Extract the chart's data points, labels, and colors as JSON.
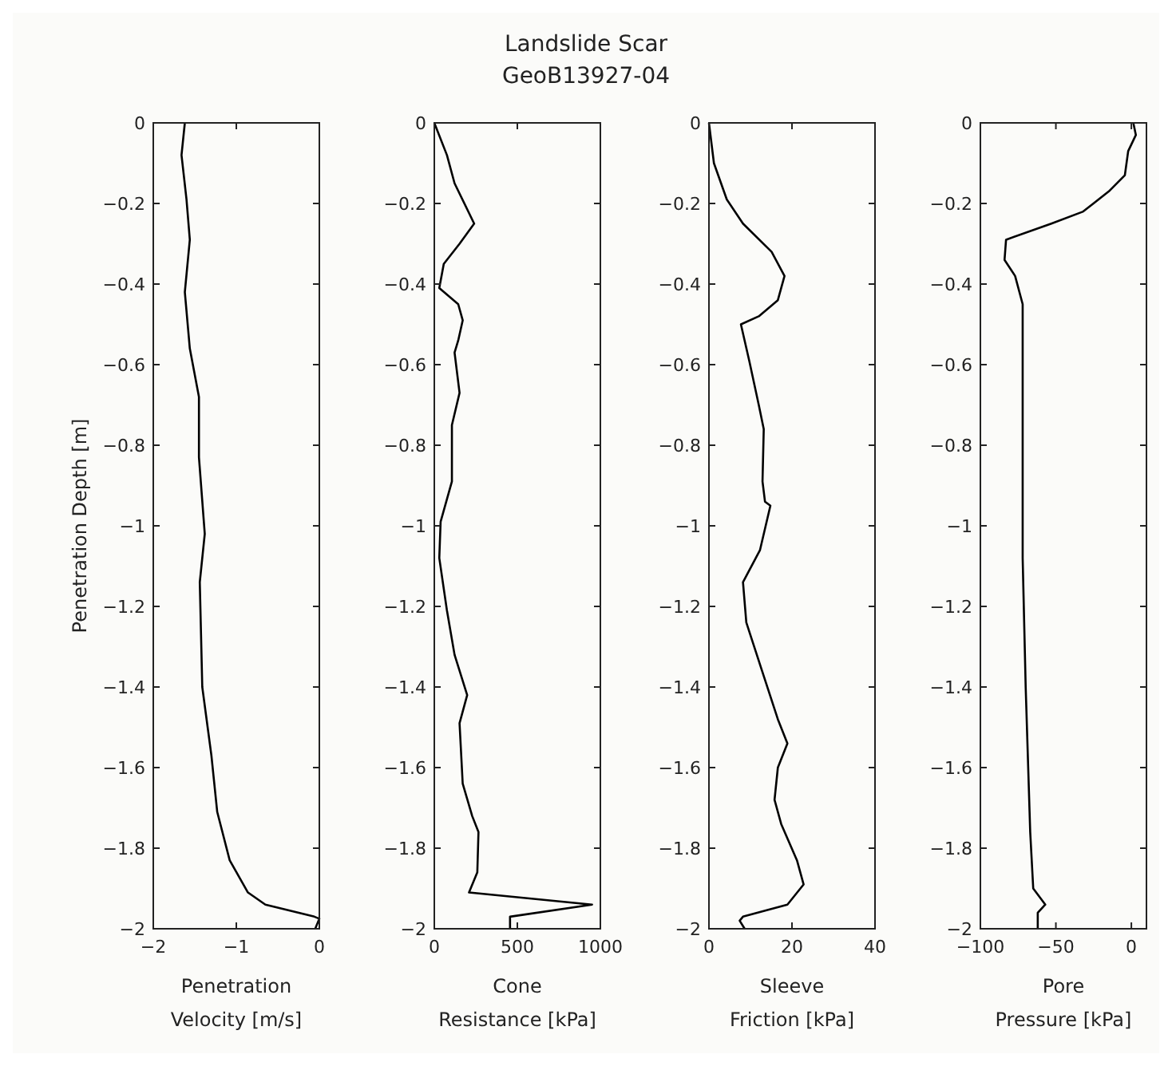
{
  "chart_data": [
    {
      "type": "line",
      "xlabel": "Penetration Velocity [m/s]",
      "ylabel": "Penetration Depth [m]",
      "xlim": [
        -2,
        0
      ],
      "xticks": [
        -2,
        -1,
        0
      ],
      "ylim": [
        -2,
        0
      ],
      "yticks": [
        0,
        -0.2,
        -0.4,
        -0.6,
        -0.8,
        -1,
        -1.2,
        -1.4,
        -1.6,
        -1.8,
        -2
      ],
      "series": [
        {
          "color": "#000000",
          "x": [
            -1.62,
            -1.66,
            -1.6,
            -1.56,
            -1.62,
            -1.56,
            -1.45,
            -1.45,
            -1.38,
            -1.44,
            -1.41,
            -1.3,
            -1.23,
            -1.08,
            -0.86,
            -0.65,
            -0.06,
            0,
            -0.05
          ],
          "values": [
            0,
            -0.08,
            -0.19,
            -0.29,
            -0.42,
            -0.56,
            -0.68,
            -0.83,
            -1.02,
            -1.14,
            -1.4,
            -1.57,
            -1.71,
            -1.83,
            -1.91,
            -1.94,
            -1.97,
            -1.975,
            -2
          ]
        }
      ]
    },
    {
      "type": "line",
      "title": "Landslide Scar",
      "subtitle": "GeoB13927-04",
      "xlabel": "Cone Resistance [kPa]",
      "xlim": [
        0,
        1000
      ],
      "xticks": [
        0,
        500,
        1000
      ],
      "ylim": [
        -2,
        0
      ],
      "yticks": [
        0,
        -0.2,
        -0.4,
        -0.6,
        -0.8,
        -1,
        -1.2,
        -1.4,
        -1.6,
        -1.8,
        -2
      ],
      "series": [
        {
          "color": "#000000",
          "x": [
            0,
            76,
            122,
            240,
            152,
            57,
            30,
            144,
            171,
            144,
            122,
            152,
            106,
            106,
            38,
            30,
            76,
            122,
            198,
            152,
            171,
            228,
            266,
            259,
            209,
            950,
            456,
            456
          ],
          "values": [
            0,
            -0.08,
            -0.15,
            -0.25,
            -0.3,
            -0.35,
            -0.41,
            -0.45,
            -0.49,
            -0.54,
            -0.57,
            -0.67,
            -0.75,
            -0.89,
            -0.99,
            -1.08,
            -1.21,
            -1.32,
            -1.42,
            -1.49,
            -1.64,
            -1.72,
            -1.76,
            -1.86,
            -1.91,
            -1.94,
            -1.97,
            -2
          ]
        }
      ]
    },
    {
      "type": "line",
      "xlabel": "Sleeve Friction [kPa]",
      "xlim": [
        0,
        40
      ],
      "xticks": [
        0,
        20,
        40
      ],
      "ylim": [
        -2,
        0
      ],
      "yticks": [
        0,
        -0.2,
        -0.4,
        -0.6,
        -0.8,
        -1,
        -1.2,
        -1.4,
        -1.6,
        -1.8,
        -2
      ],
      "series": [
        {
          "color": "#000000",
          "x": [
            0,
            1.2,
            4.3,
            8.2,
            15.1,
            18.2,
            16.6,
            12,
            7.7,
            9.7,
            12,
            13.2,
            12.9,
            13.5,
            14.8,
            12.3,
            8.2,
            9,
            12.8,
            16.6,
            18.9,
            16.6,
            15.8,
            17.4,
            21.2,
            22.8,
            18.9,
            8.2,
            7.4,
            8.6
          ],
          "values": [
            0,
            -0.1,
            -0.19,
            -0.25,
            -0.32,
            -0.38,
            -0.44,
            -0.48,
            -0.5,
            -0.59,
            -0.7,
            -0.76,
            -0.89,
            -0.94,
            -0.95,
            -1.06,
            -1.14,
            -1.24,
            -1.36,
            -1.48,
            -1.54,
            -1.6,
            -1.68,
            -1.74,
            -1.83,
            -1.89,
            -1.94,
            -1.97,
            -1.98,
            -2
          ]
        }
      ]
    },
    {
      "type": "line",
      "xlabel": "Pore Pressure [kPa]",
      "xlim": [
        -100,
        10
      ],
      "xticks": [
        -100,
        -50,
        0
      ],
      "ylim": [
        -2,
        0
      ],
      "yticks": [
        0,
        -0.2,
        -0.4,
        -0.6,
        -0.8,
        -1,
        -1.2,
        -1.4,
        -1.6,
        -1.8,
        -2
      ],
      "series": [
        {
          "color": "#000000",
          "x": [
            1.3,
            3,
            -2.1,
            -4.3,
            -14.9,
            -31.9,
            -53,
            -83,
            -84,
            -77,
            -72,
            -72,
            -72,
            -70,
            -67,
            -65,
            -57,
            -62,
            -62
          ],
          "values": [
            0,
            -0.03,
            -0.07,
            -0.13,
            -0.17,
            -0.22,
            -0.25,
            -0.29,
            -0.34,
            -0.38,
            -0.45,
            -0.61,
            -1.08,
            -1.4,
            -1.76,
            -1.9,
            -1.94,
            -1.96,
            -2
          ]
        }
      ]
    }
  ]
}
